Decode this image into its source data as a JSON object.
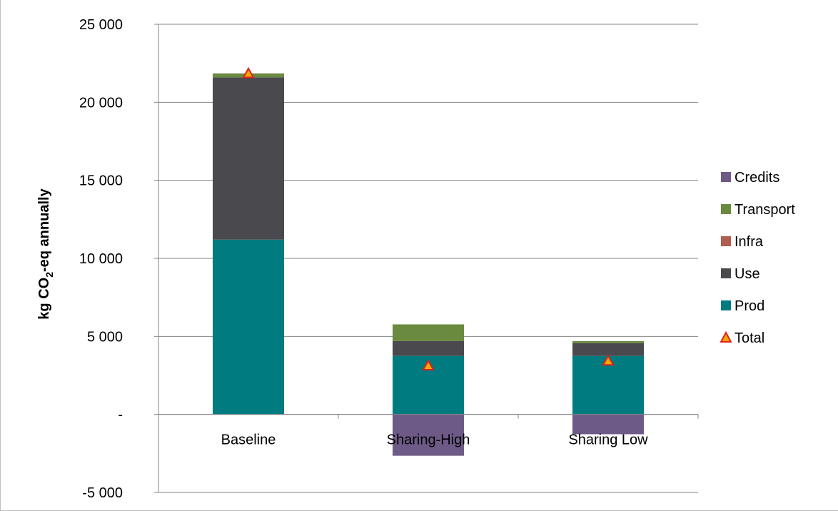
{
  "chart_data": {
    "type": "bar",
    "stacked": true,
    "title": "",
    "xlabel": "",
    "ylabel": "kg CO2-eq annually",
    "ylabel_parts": {
      "pre": "kg CO",
      "sub": "2",
      "post": "-eq annually"
    },
    "ylim": [
      -5000,
      25000
    ],
    "yticks": [
      -5000,
      0,
      5000,
      10000,
      15000,
      20000,
      25000
    ],
    "ytick_labels": [
      "-5 000",
      "-",
      "5 000",
      "10 000",
      "15 000",
      "20 000",
      "25 000"
    ],
    "grid": "horizontal",
    "legend_position": "right",
    "categories": [
      "Baseline",
      "Sharing-High",
      "Sharing Low"
    ],
    "series": [
      {
        "name": "Prod",
        "color": "#007B7F",
        "values": [
          11200,
          3750,
          3750
        ]
      },
      {
        "name": "Use",
        "color": "#4A4A4E",
        "values": [
          10400,
          950,
          820
        ]
      },
      {
        "name": "Infra",
        "color": "#B15D4F",
        "values": [
          0,
          0,
          0
        ]
      },
      {
        "name": "Transport",
        "color": "#6A8A3F",
        "values": [
          250,
          1070,
          130
        ]
      },
      {
        "name": "Credits",
        "color": "#6E5A87",
        "values": [
          0,
          -2650,
          -1270
        ]
      }
    ],
    "total": {
      "name": "Total",
      "marker": "triangle",
      "color": "#F5A800",
      "edge_color": "#E21F1F",
      "values": [
        21850,
        3120,
        3430
      ]
    },
    "legend_order": [
      "Credits",
      "Transport",
      "Infra",
      "Use",
      "Prod",
      "Total"
    ]
  }
}
